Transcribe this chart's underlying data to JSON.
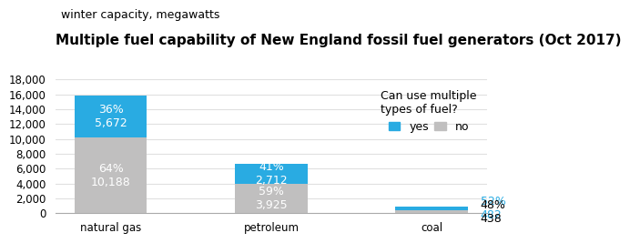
{
  "title": "Multiple fuel capability of New England fossil fuel generators (Oct 2017)",
  "subtitle": "winter capacity, megawatts",
  "categories": [
    "natural gas",
    "petroleum",
    "coal"
  ],
  "no_values": [
    10188,
    3925,
    438
  ],
  "yes_values": [
    5672,
    2712,
    482
  ],
  "no_pcts": [
    "64%",
    "59%",
    "48%"
  ],
  "yes_pcts": [
    "36%",
    "41%",
    "52%"
  ],
  "no_labels": [
    "10,188",
    "3,925",
    "438"
  ],
  "yes_labels": [
    "5,672",
    "2,712",
    "482"
  ],
  "color_yes": "#29abe2",
  "color_no": "#c0bfbf",
  "ylim": [
    0,
    18000
  ],
  "yticks": [
    0,
    2000,
    4000,
    6000,
    8000,
    10000,
    12000,
    14000,
    16000,
    18000
  ],
  "ytick_labels": [
    "0",
    "2,000",
    "4,000",
    "6,000",
    "8,000",
    "10,000",
    "12,000",
    "14,000",
    "16,000",
    "18,000"
  ],
  "legend_title": "Can use multiple\ntypes of fuel?",
  "legend_yes": "yes",
  "legend_no": "no",
  "bar_width": 0.45,
  "title_fontsize": 11,
  "subtitle_fontsize": 9,
  "label_fontsize": 9,
  "tick_fontsize": 8.5,
  "background_color": "#ffffff"
}
